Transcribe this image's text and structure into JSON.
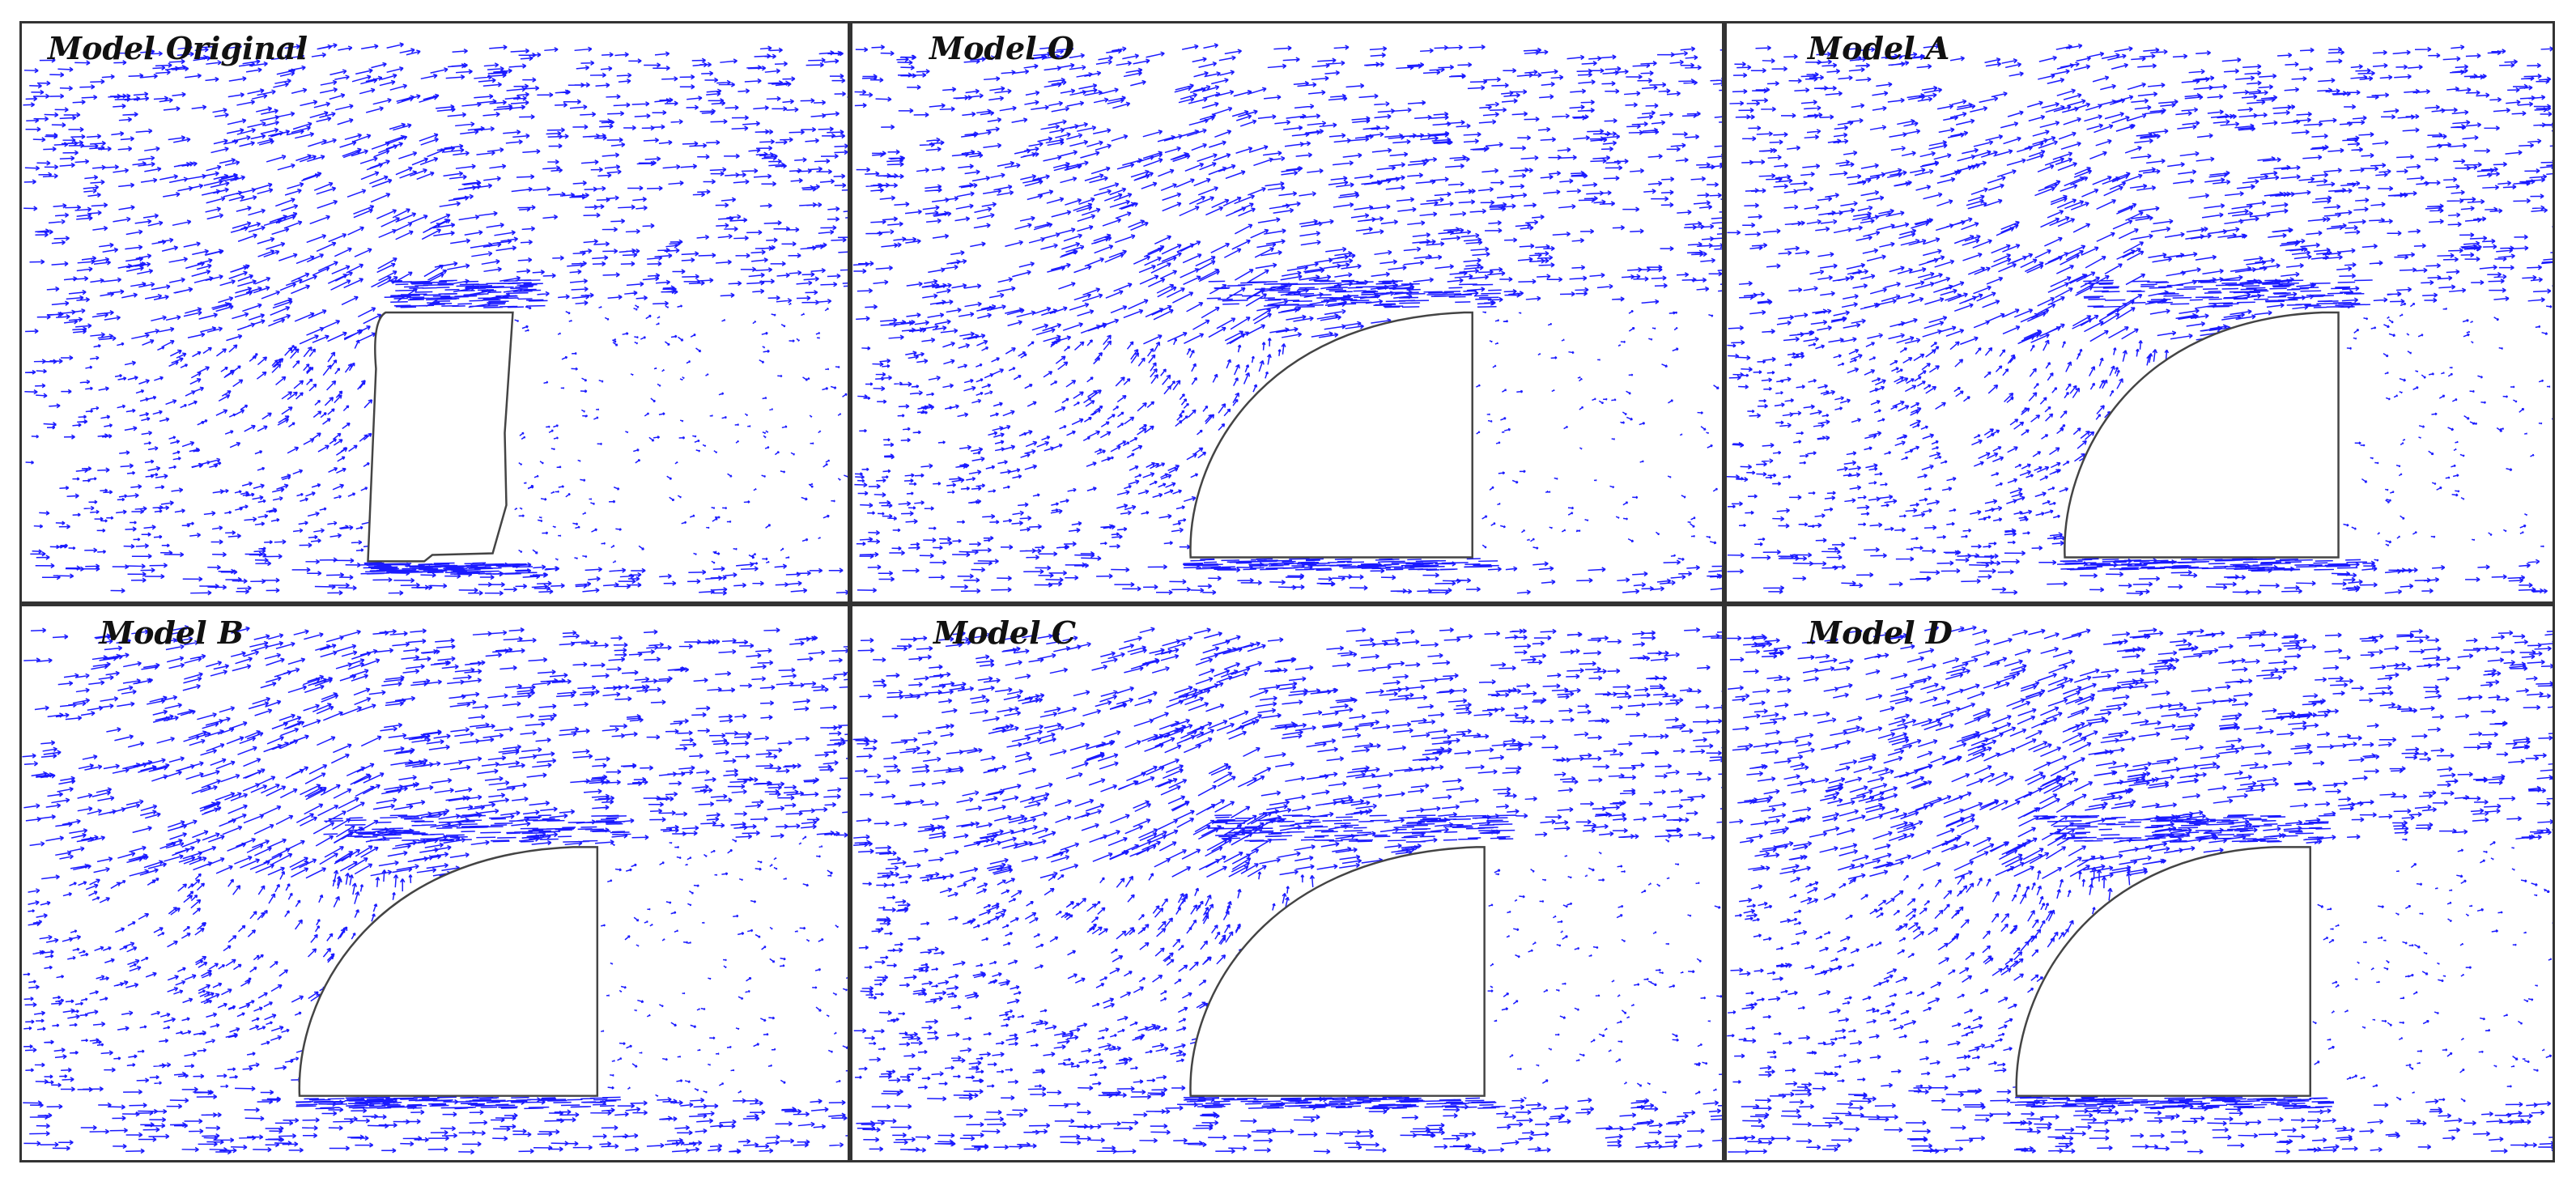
{
  "panels": [
    {
      "label": "Model Original",
      "body_shape": "truck-original"
    },
    {
      "label": "Model O",
      "body_shape": "rounded-front"
    },
    {
      "label": "Model A",
      "body_shape": "rounded-front"
    },
    {
      "label": "Model B",
      "body_shape": "rounded-front"
    },
    {
      "label": "Model C",
      "body_shape": "rounded-front"
    },
    {
      "label": "Model D",
      "body_shape": "rounded-front"
    }
  ],
  "colors": {
    "vector": "#1a1aff",
    "body_outline": "#444444",
    "frame": "#333333",
    "background": "#ffffff"
  }
}
